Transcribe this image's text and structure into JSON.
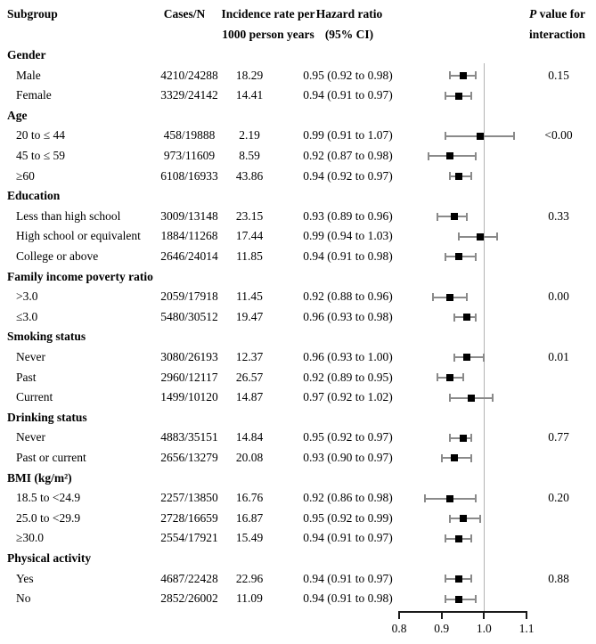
{
  "figure": {
    "background": "#ffffff",
    "columns": {
      "subgroup": "Subgroup",
      "cases": "Cases/N",
      "incidence_line1": "Incidence rate per",
      "incidence_line2": "1000 person years",
      "hazard_line1": "Hazard ratio",
      "hazard_line2": "(95% CI)",
      "p_italic": "P",
      "p_rest": " value for",
      "p_line2": "interaction"
    },
    "colors": {
      "marker": "#000000",
      "whisker": "#8a8a8a",
      "reference_line": "#b3b3b3",
      "axis": "#1a1a1a",
      "text": "#000000"
    }
  },
  "chart_data": {
    "type": "scatter",
    "subtype": "forest-plot",
    "title": "",
    "xlabel": "",
    "x_axis": {
      "range": [
        0.8,
        1.1
      ],
      "ticks": [
        0.8,
        0.9,
        1.0,
        1.1
      ],
      "tick_labels": [
        "0.8",
        "0.9",
        "1.0",
        "1.1"
      ],
      "reference_line": 1.0
    },
    "sections": [
      {
        "label": "Gender",
        "p_interaction": "0.15",
        "rows": [
          {
            "label": "Male",
            "cases": "4210/24288",
            "rate": "18.29",
            "hr_text": "0.95 (0.92 to 0.98)",
            "hr": 0.95,
            "lo": 0.92,
            "hi": 0.98
          },
          {
            "label": "Female",
            "cases": "3329/24142",
            "rate": "14.41",
            "hr_text": "0.94 (0.91 to 0.97)",
            "hr": 0.94,
            "lo": 0.91,
            "hi": 0.97
          }
        ]
      },
      {
        "label": "Age",
        "p_interaction": "<0.00",
        "rows": [
          {
            "label": "20 to ≤ 44",
            "cases": "458/19888",
            "rate": "2.19",
            "hr_text": "0.99 (0.91 to 1.07)",
            "hr": 0.99,
            "lo": 0.91,
            "hi": 1.07
          },
          {
            "label": "45 to ≤ 59",
            "cases": "973/11609",
            "rate": "8.59",
            "hr_text": "0.92 (0.87 to 0.98)",
            "hr": 0.92,
            "lo": 0.87,
            "hi": 0.98
          },
          {
            "label": "≥60",
            "cases": "6108/16933",
            "rate": "43.86",
            "hr_text": "0.94 (0.92 to 0.97)",
            "hr": 0.94,
            "lo": 0.92,
            "hi": 0.97
          }
        ]
      },
      {
        "label": "Education",
        "p_interaction": "0.33",
        "rows": [
          {
            "label": "Less than high school",
            "cases": "3009/13148",
            "rate": "23.15",
            "hr_text": "0.93 (0.89 to 0.96)",
            "hr": 0.93,
            "lo": 0.89,
            "hi": 0.96
          },
          {
            "label": "High school or equivalent",
            "cases": "1884/11268",
            "rate": "17.44",
            "hr_text": "0.99 (0.94 to 1.03)",
            "hr": 0.99,
            "lo": 0.94,
            "hi": 1.03
          },
          {
            "label": "College or above",
            "cases": "2646/24014",
            "rate": "11.85",
            "hr_text": "0.94 (0.91 to 0.98)",
            "hr": 0.94,
            "lo": 0.91,
            "hi": 0.98
          }
        ]
      },
      {
        "label": "Family income poverty ratio",
        "p_interaction": "0.00",
        "rows": [
          {
            "label": ">3.0",
            "cases": "2059/17918",
            "rate": "11.45",
            "hr_text": "0.92 (0.88 to 0.96)",
            "hr": 0.92,
            "lo": 0.88,
            "hi": 0.96
          },
          {
            "label": "≤3.0",
            "cases": "5480/30512",
            "rate": "19.47",
            "hr_text": "0.96 (0.93 to 0.98)",
            "hr": 0.96,
            "lo": 0.93,
            "hi": 0.98
          }
        ]
      },
      {
        "label": "Smoking status",
        "p_interaction": "0.01",
        "rows": [
          {
            "label": "Never",
            "cases": "3080/26193",
            "rate": "12.37",
            "hr_text": "0.96 (0.93 to 1.00)",
            "hr": 0.96,
            "lo": 0.93,
            "hi": 1.0
          },
          {
            "label": "Past",
            "cases": "2960/12117",
            "rate": "26.57",
            "hr_text": "0.92 (0.89 to 0.95)",
            "hr": 0.92,
            "lo": 0.89,
            "hi": 0.95
          },
          {
            "label": "Current",
            "cases": "1499/10120",
            "rate": "14.87",
            "hr_text": "0.97 (0.92 to 1.02)",
            "hr": 0.97,
            "lo": 0.92,
            "hi": 1.02
          }
        ]
      },
      {
        "label": "Drinking status",
        "p_interaction": "0.77",
        "rows": [
          {
            "label": "Never",
            "cases": "4883/35151",
            "rate": "14.84",
            "hr_text": "0.95 (0.92 to 0.97)",
            "hr": 0.95,
            "lo": 0.92,
            "hi": 0.97
          },
          {
            "label": "Past or current",
            "cases": "2656/13279",
            "rate": "20.08",
            "hr_text": "0.93 (0.90 to 0.97)",
            "hr": 0.93,
            "lo": 0.9,
            "hi": 0.97
          }
        ]
      },
      {
        "label": "BMI (kg/m²)",
        "p_interaction": "0.20",
        "rows": [
          {
            "label": "18.5  to <24.9",
            "cases": "2257/13850",
            "rate": "16.76",
            "hr_text": "0.92 (0.86 to 0.98)",
            "hr": 0.92,
            "lo": 0.86,
            "hi": 0.98
          },
          {
            "label": "25.0  to <29.9",
            "cases": "2728/16659",
            "rate": "16.87",
            "hr_text": "0.95 (0.92 to 0.99)",
            "hr": 0.95,
            "lo": 0.92,
            "hi": 0.99
          },
          {
            "label": "≥30.0",
            "cases": "2554/17921",
            "rate": "15.49",
            "hr_text": "0.94 (0.91 to 0.97)",
            "hr": 0.94,
            "lo": 0.91,
            "hi": 0.97
          }
        ]
      },
      {
        "label": "Physical activity",
        "p_interaction": "0.88",
        "rows": [
          {
            "label": "Yes",
            "cases": "4687/22428",
            "rate": "22.96",
            "hr_text": "0.94 (0.91 to 0.97)",
            "hr": 0.94,
            "lo": 0.91,
            "hi": 0.97
          },
          {
            "label": "No",
            "cases": "2852/26002",
            "rate": "11.09",
            "hr_text": "0.94 (0.91 to 0.98)",
            "hr": 0.94,
            "lo": 0.91,
            "hi": 0.98
          }
        ]
      }
    ]
  }
}
